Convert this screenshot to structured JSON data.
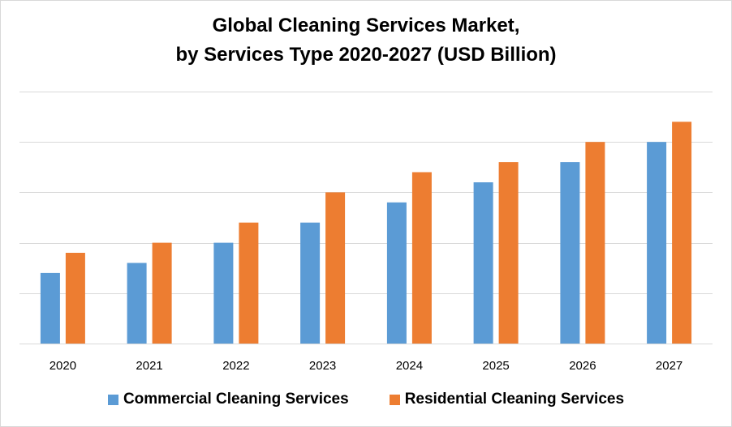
{
  "chart_data": {
    "type": "bar",
    "title": "Global Cleaning Services Market,",
    "subtitle": "by Services Type 2020-2027 (USD Billion)",
    "xlabel": "",
    "ylabel": "",
    "categories": [
      "2020",
      "2021",
      "2022",
      "2023",
      "2024",
      "2025",
      "2026",
      "2027"
    ],
    "series": [
      {
        "name": "Commercial Cleaning Services",
        "color": "#5b9bd5",
        "values": [
          1.4,
          1.6,
          2.0,
          2.4,
          2.8,
          3.2,
          3.6,
          4.0
        ]
      },
      {
        "name": "Residential Cleaning Services",
        "color": "#ed7d31",
        "values": [
          1.8,
          2.0,
          2.4,
          3.0,
          3.4,
          3.6,
          4.0,
          4.4
        ]
      }
    ],
    "ylim": [
      0,
      5
    ],
    "ygrid_step": 1,
    "grid": true,
    "ytick_labels_visible": false,
    "legend_position": "bottom",
    "gridline_color": "#d9d9d9"
  }
}
